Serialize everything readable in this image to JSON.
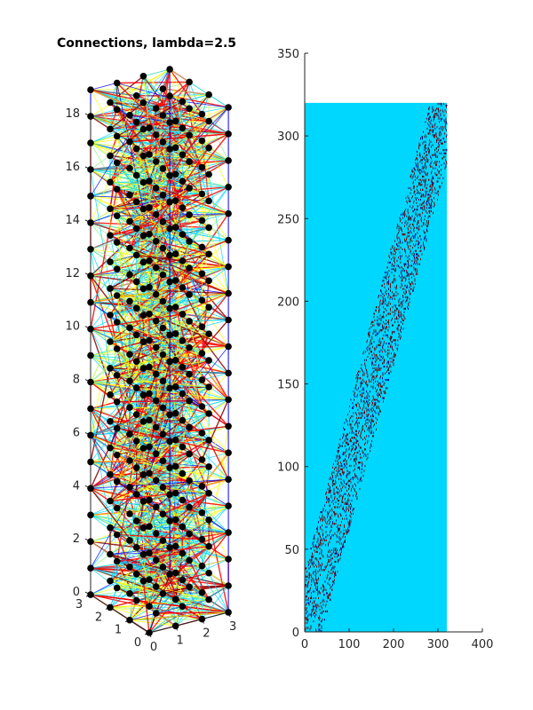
{
  "chart_data": [
    {
      "type": "3d-network",
      "title": "Connections, lambda=2.5",
      "z_ticks": [
        0,
        2,
        4,
        6,
        8,
        10,
        12,
        14,
        16,
        18
      ],
      "x_ticks": [
        0,
        1,
        2,
        3
      ],
      "y_ticks": [
        0,
        1,
        2,
        3
      ],
      "grid": {
        "x": 4,
        "y": 4,
        "z": 20
      },
      "node_color": "#000000",
      "edge_colors": [
        "#00d7ff",
        "#ffff00",
        "#ff0000",
        "#8b0000",
        "#90ee90",
        "#0000ff"
      ]
    },
    {
      "type": "heatmap",
      "title": "",
      "xlim": [
        0,
        400
      ],
      "ylim": [
        0,
        350
      ],
      "x_ticks": [
        0,
        100,
        200,
        300,
        400
      ],
      "y_ticks": [
        0,
        50,
        100,
        150,
        200,
        250,
        300,
        350
      ],
      "matrix_size": 320,
      "background_color": "#00d7ff",
      "mark_colors": [
        "#7f0000",
        "#00008f",
        "#1a1a1a"
      ]
    }
  ]
}
